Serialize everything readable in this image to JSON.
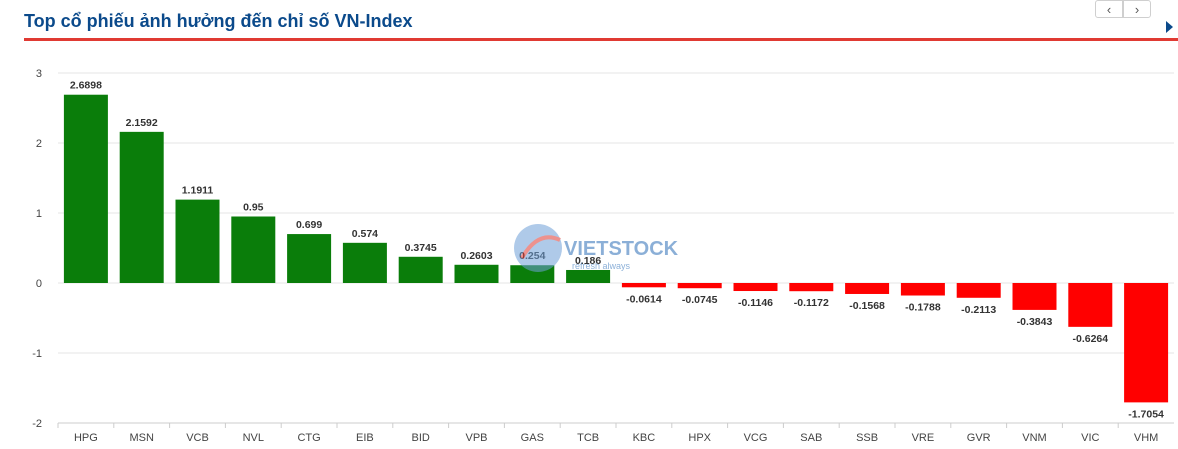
{
  "header": {
    "title": "Top cổ phiếu ảnh hưởng đến chỉ số VN-Index",
    "prev_label": "‹",
    "next_label": "›"
  },
  "watermark": {
    "text": "VIETSTOCK",
    "tagline": "refresh always"
  },
  "colors": {
    "positive": "#0a7d0a",
    "negative": "#ff0000",
    "title": "#0b4a8b",
    "rule": "#e03a33"
  },
  "chart_data": {
    "type": "bar",
    "title": "Top cổ phiếu ảnh hưởng đến chỉ số VN-Index",
    "categories": [
      "HPG",
      "MSN",
      "VCB",
      "NVL",
      "CTG",
      "EIB",
      "BID",
      "VPB",
      "GAS",
      "TCB",
      "KBC",
      "HPX",
      "VCG",
      "SAB",
      "SSB",
      "VRE",
      "GVR",
      "VNM",
      "VIC",
      "VHM"
    ],
    "values": [
      2.6898,
      2.1592,
      1.1911,
      0.95,
      0.699,
      0.574,
      0.3745,
      0.2603,
      0.254,
      0.186,
      -0.0614,
      -0.0745,
      -0.1146,
      -0.1172,
      -0.1568,
      -0.1788,
      -0.2113,
      -0.3843,
      -0.6264,
      -1.7054
    ],
    "value_labels": [
      "2.6898",
      "2.1592",
      "1.1911",
      "0.95",
      "0.699",
      "0.574",
      "0.3745",
      "0.2603",
      "0.254",
      "0.186",
      "-0.0614",
      "-0.0745",
      "-0.1146",
      "-0.1172",
      "-0.1568",
      "-0.1788",
      "-0.2113",
      "-0.3843",
      "-0.6264",
      "-1.7054"
    ],
    "yticks": [
      "3",
      "2",
      "1",
      "0",
      "-1",
      "-2"
    ],
    "ylim": [
      -2,
      3
    ],
    "grid": true,
    "legend": "none"
  }
}
